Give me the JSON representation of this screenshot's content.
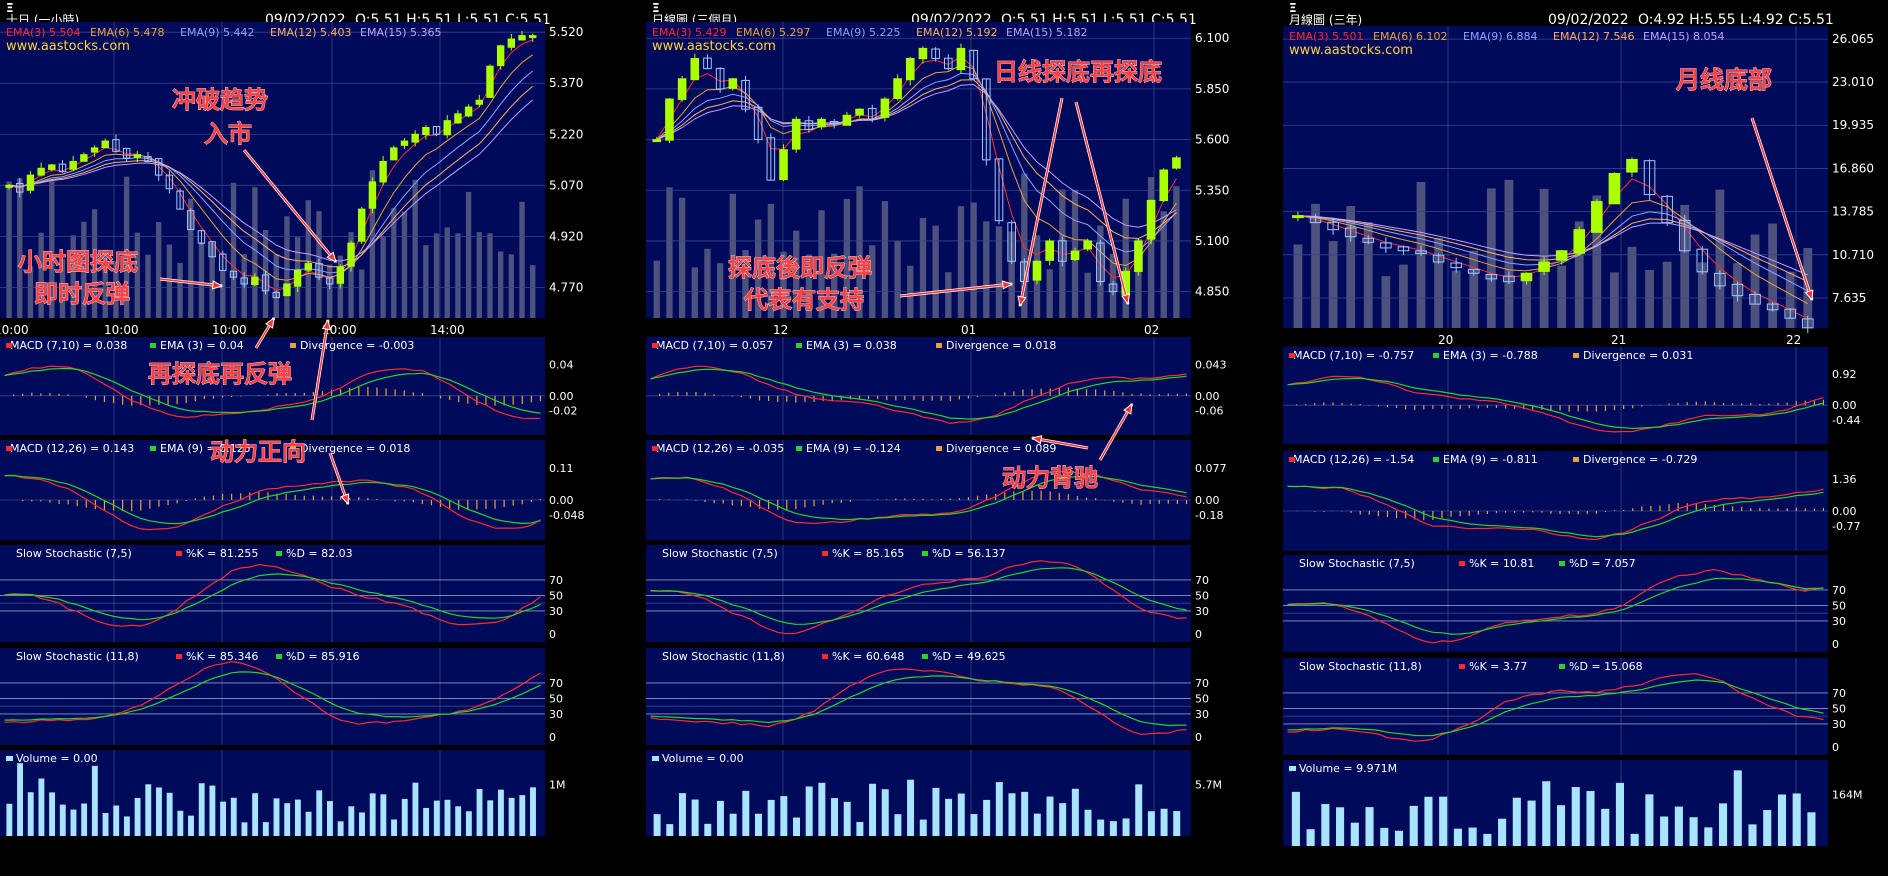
{
  "colors": {
    "panel": "#000a5a",
    "grid": "#36448a",
    "red": "#ff2b2b",
    "green": "#28d428",
    "orange": "#e9a23b",
    "bull": "#aaff00",
    "bear": "#9ec8ff",
    "vol": "#a8e4ff",
    "volbg": "#5a5e84",
    "wm": "#ffd23c"
  },
  "charts": [
    {
      "stock": "Ξ",
      "period": "十日 (一小時)",
      "date": "09/02/2022",
      "ohlc": "O:5.51  H:5.51  L:5.51  C:5.51",
      "ema": [
        "EMA(3) 5.504",
        "EMA(6) 5.478",
        "EMA(9) 5.442",
        "EMA(12) 5.403",
        "EMA(15) 5.365"
      ],
      "watermark": "www.aastocks.com",
      "yticks": [
        "5.520",
        "5.370",
        "5.220",
        "5.070",
        "4.920",
        "4.770"
      ],
      "xticks": [
        "10:00",
        "10:00",
        "10:00",
        "10:00",
        "14:00"
      ],
      "macd1": {
        "label": "MACD (7,10) = 0.038",
        "ema": "EMA (3) = 0.04",
        "div": "Divergence = -0.003",
        "ticks": [
          "0.04",
          "0.00",
          "-0.02"
        ]
      },
      "macd2": {
        "label": "MACD (12,26) = 0.143",
        "ema": "EMA (9) = 0.125",
        "div": "Divergence = 0.018",
        "ticks": [
          "0.11",
          "0.00",
          "-0.048"
        ]
      },
      "sto1": {
        "label": "Slow Stochastic (7,5)",
        "k": "%K = 81.255",
        "d": "%D = 82.03",
        "ticks": [
          "70",
          "50",
          "30",
          "0"
        ]
      },
      "sto2": {
        "label": "Slow Stochastic (11,8)",
        "k": "%K = 85.346",
        "d": "%D = 85.916",
        "ticks": [
          "70",
          "50",
          "30",
          "0"
        ]
      },
      "volume": {
        "label": "Volume  = 0.00",
        "tick": "1M"
      },
      "annotations": [
        "冲破趋势",
        "入市",
        "小时图探底",
        "即时反弹",
        "再探底再反弹",
        "动力正向"
      ]
    },
    {
      "stock": "Ξ",
      "period": "日線圖 (三個月)",
      "date": "09/02/2022",
      "ohlc": "O:5.51  H:5.51  L:5.51  C:5.51",
      "ema": [
        "EMA(3) 5.429",
        "EMA(6) 5.297",
        "EMA(9) 5.225",
        "EMA(12) 5.192",
        "EMA(15) 5.182"
      ],
      "watermark": "www.aastocks.com",
      "yticks": [
        "6.100",
        "5.850",
        "5.600",
        "5.350",
        "5.100",
        "4.850"
      ],
      "xticks": [
        "12",
        "01",
        "02"
      ],
      "macd1": {
        "label": "MACD (7,10) = 0.057",
        "ema": "EMA (3) = 0.038",
        "div": "Divergence = 0.018",
        "ticks": [
          "0.043",
          "0.00",
          "-0.06"
        ]
      },
      "macd2": {
        "label": "MACD (12,26) = -0.035",
        "ema": "EMA (9) = -0.124",
        "div": "Divergence = 0.089",
        "ticks": [
          "0.077",
          "0.00",
          "-0.18"
        ]
      },
      "sto1": {
        "label": "Slow Stochastic (7,5)",
        "k": "%K = 85.165",
        "d": "%D = 56.137",
        "ticks": [
          "70",
          "50",
          "30",
          "0"
        ]
      },
      "sto2": {
        "label": "Slow Stochastic (11,8)",
        "k": "%K = 60.648",
        "d": "%D = 49.625",
        "ticks": [
          "70",
          "50",
          "30",
          "0"
        ]
      },
      "volume": {
        "label": "Volume  = 0.00",
        "tick": "5.7M"
      },
      "annotations": [
        "日线探底再探底",
        "探底後即反弹",
        "代表有支持",
        "动力背驰"
      ]
    },
    {
      "stock": "Ξ",
      "period": "月線圖 (三年)",
      "date": "09/02/2022",
      "ohlc": "O:4.92  H:5.55  L:4.92  C:5.51",
      "ema": [
        "EMA(3) 5.501",
        "EMA(6) 6.102",
        "EMA(9) 6.884",
        "EMA(12) 7.546",
        "EMA(15) 8.054"
      ],
      "watermark": "www.aastocks.com",
      "yticks": [
        "26.065",
        "23.010",
        "19.935",
        "16.860",
        "13.785",
        "10.710",
        "7.635"
      ],
      "xticks": [
        "20",
        "21",
        "22"
      ],
      "macd1": {
        "label": "MACD (7,10) = -0.757",
        "ema": "EMA (3) = -0.788",
        "div": "Divergence = 0.031",
        "ticks": [
          "0.92",
          "0.00",
          "-0.44"
        ]
      },
      "macd2": {
        "label": "MACD (12,26) = -1.54",
        "ema": "EMA (9) = -0.811",
        "div": "Divergence = -0.729",
        "ticks": [
          "1.36",
          "0.00",
          "-0.77"
        ]
      },
      "sto1": {
        "label": "Slow Stochastic (7,5)",
        "k": "%K = 10.81",
        "d": "%D = 7.057",
        "ticks": [
          "70",
          "50",
          "30",
          "0"
        ]
      },
      "sto2": {
        "label": "Slow Stochastic (11,8)",
        "k": "%K = 3.77",
        "d": "%D = 15.068",
        "ticks": [
          "70",
          "50",
          "30",
          "0"
        ]
      },
      "volume": {
        "label": "Volume  = 9.971M",
        "tick": "164M"
      },
      "annotations": [
        "月线底部"
      ]
    }
  ],
  "chart_data": [
    {
      "type": "line",
      "title": "十日 (一小時)",
      "yticks": [
        5.52,
        5.37,
        5.22,
        5.07,
        4.92,
        4.77
      ],
      "ylim": [
        4.68,
        5.55
      ],
      "close": [
        5.07,
        5.05,
        5.1,
        5.12,
        5.13,
        5.11,
        5.14,
        5.16,
        5.18,
        5.2,
        5.17,
        5.15,
        5.16,
        5.14,
        5.1,
        5.06,
        5.0,
        4.94,
        4.9,
        4.86,
        4.82,
        4.8,
        4.78,
        4.8,
        4.76,
        4.74,
        4.78,
        4.82,
        4.84,
        4.8,
        4.78,
        4.83,
        4.9,
        5.0,
        5.08,
        5.14,
        5.18,
        5.2,
        5.22,
        5.24,
        5.22,
        5.26,
        5.28,
        5.3,
        5.32,
        5.42,
        5.48,
        5.5,
        5.51,
        5.51
      ]
    },
    {
      "type": "line",
      "title": "日線圖 (三個月)",
      "yticks": [
        6.1,
        5.85,
        5.6,
        5.35,
        5.1,
        4.85
      ],
      "ylim": [
        4.72,
        6.18
      ],
      "close": [
        5.6,
        5.8,
        5.9,
        6.0,
        5.95,
        5.85,
        5.9,
        5.75,
        5.6,
        5.4,
        5.55,
        5.7,
        5.65,
        5.7,
        5.68,
        5.72,
        5.75,
        5.7,
        5.8,
        5.9,
        6.0,
        6.05,
        6.0,
        5.95,
        6.05,
        5.9,
        5.5,
        5.2,
        5.0,
        4.9,
        5.0,
        5.1,
        5.0,
        5.05,
        5.1,
        4.9,
        4.85,
        4.95,
        5.1,
        5.3,
        5.45,
        5.51
      ]
    },
    {
      "type": "line",
      "title": "月線圖 (三年)",
      "yticks": [
        26.065,
        23.01,
        19.935,
        16.86,
        13.785,
        10.71,
        7.635
      ],
      "ylim": [
        5.5,
        27
      ],
      "close": [
        13.5,
        13.0,
        12.5,
        12.0,
        11.6,
        11.2,
        11.0,
        10.8,
        10.2,
        9.8,
        9.4,
        9.0,
        8.8,
        9.4,
        10.2,
        11.0,
        12.5,
        14.5,
        16.5,
        17.5,
        15.0,
        13.0,
        11.0,
        9.5,
        8.5,
        7.8,
        7.2,
        6.8,
        6.2,
        5.51
      ]
    }
  ]
}
